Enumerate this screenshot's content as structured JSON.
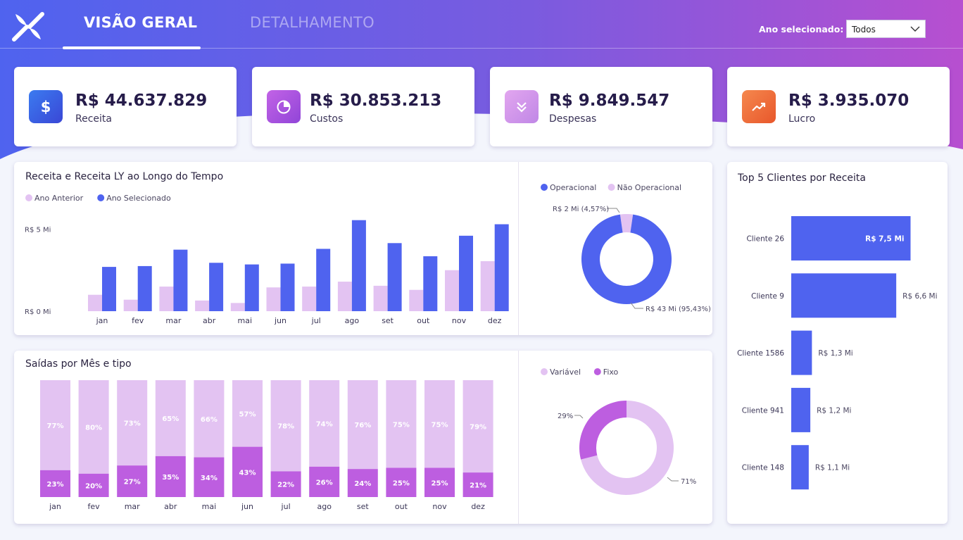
{
  "nav": {
    "tab_overview": "VISÃO GERAL",
    "tab_detail": "DETALHAMENTO",
    "year_label": "Ano selecionado:",
    "year_value": "Todos"
  },
  "colors": {
    "hero_start": "#4f63ef",
    "hero_end": "#b74fd0",
    "blue": "#4f63ef",
    "light_purple": "#e3c3f2",
    "purple": "#bd5ee0"
  },
  "kpis": [
    {
      "value": "R$ 44.637.829",
      "label": "Receita",
      "icon": "dollar-icon"
    },
    {
      "value": "R$ 30.853.213",
      "label": "Custos",
      "icon": "pie-icon"
    },
    {
      "value": "R$ 9.849.547",
      "label": "Despesas",
      "icon": "chevrons-down-icon"
    },
    {
      "value": "R$ 3.935.070",
      "label": "Lucro",
      "icon": "trend-up-icon"
    }
  ],
  "chart_data": [
    {
      "type": "bar",
      "title": "Receita e Receita LY ao Longo do Tempo",
      "categories": [
        "jan",
        "fev",
        "mar",
        "abr",
        "mai",
        "jun",
        "jul",
        "ago",
        "set",
        "out",
        "nov",
        "dez"
      ],
      "series": [
        {
          "name": "Ano Anterior",
          "values": [
            1.0,
            0.7,
            1.5,
            0.65,
            0.5,
            1.45,
            1.5,
            1.8,
            1.55,
            1.3,
            2.5,
            3.05
          ]
        },
        {
          "name": "Ano Selecionado",
          "values": [
            2.7,
            2.75,
            3.75,
            2.95,
            2.85,
            2.9,
            3.8,
            5.55,
            4.15,
            3.35,
            4.6,
            5.3
          ]
        }
      ],
      "yticks": [
        "R$ 0 Mi",
        "R$ 5 Mi"
      ],
      "ylim": [
        0,
        5.8
      ],
      "legend": "top-left"
    },
    {
      "type": "pie",
      "donut": true,
      "labels": [
        "Operacional",
        "Não Operacional"
      ],
      "values": [
        95.43,
        4.57
      ],
      "data_labels": [
        "R$ 43 Mi (95,43%)",
        "R$ 2 Mi (4,57%)"
      ],
      "legend": "top-left"
    },
    {
      "type": "bar",
      "stacked": true,
      "percent": true,
      "title": "Saídas por Mês e tipo",
      "categories": [
        "jan",
        "fev",
        "mar",
        "abr",
        "mai",
        "jun",
        "jul",
        "ago",
        "set",
        "out",
        "nov",
        "dez"
      ],
      "series": [
        {
          "name": "Variável",
          "values": [
            77,
            80,
            73,
            65,
            66,
            57,
            78,
            74,
            76,
            75,
            75,
            79
          ],
          "labels": [
            "77%",
            "80%",
            "73%",
            "65%",
            "66%",
            "57%",
            "78%",
            "74%",
            "76%",
            "75%",
            "75%",
            "79%"
          ]
        },
        {
          "name": "Fixo",
          "values": [
            23,
            20,
            27,
            35,
            34,
            43,
            22,
            26,
            24,
            25,
            25,
            21
          ],
          "labels": [
            "23%",
            "20%",
            "27%",
            "35%",
            "34%",
            "43%",
            "22%",
            "26%",
            "24%",
            "25%",
            "25%",
            "21%"
          ]
        }
      ],
      "legend": "top-left"
    },
    {
      "type": "pie",
      "donut": true,
      "labels": [
        "Variável",
        "Fixo"
      ],
      "values": [
        71,
        29
      ],
      "data_labels": [
        "71%",
        "29%"
      ],
      "legend": "top-left"
    },
    {
      "type": "bar",
      "orientation": "horizontal",
      "title": "Top 5 Clientes por Receita",
      "categories": [
        "Cliente 26",
        "Cliente 9",
        "Cliente 1586",
        "Cliente 941",
        "Cliente 148"
      ],
      "values": [
        7.5,
        6.6,
        1.3,
        1.2,
        1.1
      ],
      "data_labels": [
        "R$ 7,5 Mi",
        "R$ 6,6 Mi",
        "R$ 1,3 Mi",
        "R$ 1,2 Mi",
        "R$ 1,1 Mi"
      ]
    }
  ]
}
